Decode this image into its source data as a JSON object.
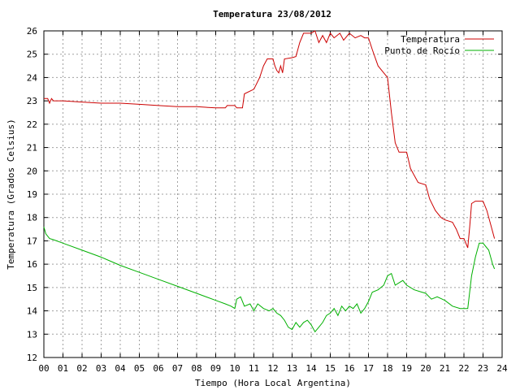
{
  "chart_data": {
    "type": "line",
    "title": "Temperatura 23/08/2012",
    "xlabel": "Tiempo (Hora Local Argentina)",
    "ylabel": "Temperatura (Grados Celsius)",
    "xlim": [
      0,
      24
    ],
    "ylim": [
      12,
      26
    ],
    "xticks": [
      "00",
      "01",
      "02",
      "03",
      "04",
      "05",
      "06",
      "07",
      "08",
      "09",
      "10",
      "11",
      "12",
      "13",
      "14",
      "15",
      "16",
      "17",
      "18",
      "19",
      "20",
      "21",
      "22",
      "23",
      "24"
    ],
    "yticks": [
      "12",
      "13",
      "14",
      "15",
      "16",
      "17",
      "18",
      "19",
      "20",
      "21",
      "22",
      "23",
      "24",
      "25",
      "26"
    ],
    "grid": true,
    "legend_position": "top-right",
    "series": [
      {
        "name": "Temperatura",
        "color": "#cc0000",
        "points": [
          [
            0.0,
            23.1
          ],
          [
            0.2,
            23.1
          ],
          [
            0.3,
            22.9
          ],
          [
            0.4,
            23.1
          ],
          [
            0.5,
            23.0
          ],
          [
            1.0,
            23.0
          ],
          [
            2.0,
            22.95
          ],
          [
            3.0,
            22.9
          ],
          [
            4.0,
            22.9
          ],
          [
            5.0,
            22.85
          ],
          [
            6.0,
            22.8
          ],
          [
            7.0,
            22.75
          ],
          [
            8.0,
            22.75
          ],
          [
            9.0,
            22.7
          ],
          [
            9.5,
            22.7
          ],
          [
            9.6,
            22.8
          ],
          [
            10.0,
            22.8
          ],
          [
            10.1,
            22.7
          ],
          [
            10.4,
            22.7
          ],
          [
            10.5,
            23.3
          ],
          [
            11.0,
            23.5
          ],
          [
            11.3,
            24.0
          ],
          [
            11.5,
            24.5
          ],
          [
            11.7,
            24.8
          ],
          [
            12.0,
            24.8
          ],
          [
            12.1,
            24.5
          ],
          [
            12.2,
            24.3
          ],
          [
            12.3,
            24.2
          ],
          [
            12.4,
            24.5
          ],
          [
            12.5,
            24.2
          ],
          [
            12.6,
            24.8
          ],
          [
            13.0,
            24.85
          ],
          [
            13.2,
            24.9
          ],
          [
            13.4,
            25.5
          ],
          [
            13.6,
            25.9
          ],
          [
            14.0,
            25.9
          ],
          [
            14.2,
            26.0
          ],
          [
            14.4,
            25.5
          ],
          [
            14.6,
            25.8
          ],
          [
            14.8,
            25.5
          ],
          [
            15.0,
            25.9
          ],
          [
            15.2,
            25.7
          ],
          [
            15.5,
            25.9
          ],
          [
            15.7,
            25.6
          ],
          [
            16.0,
            25.9
          ],
          [
            16.3,
            25.7
          ],
          [
            16.6,
            25.8
          ],
          [
            16.8,
            25.7
          ],
          [
            17.0,
            25.7
          ],
          [
            17.2,
            25.2
          ],
          [
            17.5,
            24.5
          ],
          [
            17.8,
            24.2
          ],
          [
            18.0,
            24.0
          ],
          [
            18.2,
            22.5
          ],
          [
            18.4,
            21.2
          ],
          [
            18.6,
            20.8
          ],
          [
            19.0,
            20.8
          ],
          [
            19.2,
            20.1
          ],
          [
            19.6,
            19.5
          ],
          [
            20.0,
            19.4
          ],
          [
            20.2,
            18.8
          ],
          [
            20.5,
            18.3
          ],
          [
            20.8,
            18.0
          ],
          [
            21.0,
            17.9
          ],
          [
            21.4,
            17.8
          ],
          [
            21.6,
            17.5
          ],
          [
            21.8,
            17.1
          ],
          [
            22.0,
            17.1
          ],
          [
            22.2,
            16.7
          ],
          [
            22.3,
            17.6
          ],
          [
            22.4,
            18.6
          ],
          [
            22.6,
            18.7
          ],
          [
            23.0,
            18.7
          ],
          [
            23.2,
            18.3
          ],
          [
            23.4,
            17.7
          ],
          [
            23.6,
            17.1
          ]
        ]
      },
      {
        "name": "Punto de Rocío",
        "color": "#00b000",
        "points": [
          [
            0.0,
            17.6
          ],
          [
            0.1,
            17.3
          ],
          [
            0.3,
            17.1
          ],
          [
            0.5,
            17.05
          ],
          [
            1.0,
            16.9
          ],
          [
            2.0,
            16.6
          ],
          [
            3.0,
            16.3
          ],
          [
            4.0,
            15.95
          ],
          [
            5.0,
            15.65
          ],
          [
            6.0,
            15.35
          ],
          [
            7.0,
            15.05
          ],
          [
            8.0,
            14.75
          ],
          [
            9.0,
            14.45
          ],
          [
            9.5,
            14.3
          ],
          [
            9.8,
            14.2
          ],
          [
            10.0,
            14.1
          ],
          [
            10.1,
            14.5
          ],
          [
            10.3,
            14.6
          ],
          [
            10.5,
            14.2
          ],
          [
            10.8,
            14.3
          ],
          [
            11.0,
            14.0
          ],
          [
            11.2,
            14.3
          ],
          [
            11.5,
            14.1
          ],
          [
            11.8,
            14.0
          ],
          [
            12.0,
            14.1
          ],
          [
            12.2,
            13.9
          ],
          [
            12.4,
            13.8
          ],
          [
            12.6,
            13.6
          ],
          [
            12.8,
            13.3
          ],
          [
            13.0,
            13.2
          ],
          [
            13.2,
            13.5
          ],
          [
            13.4,
            13.3
          ],
          [
            13.6,
            13.5
          ],
          [
            13.8,
            13.6
          ],
          [
            14.0,
            13.4
          ],
          [
            14.2,
            13.1
          ],
          [
            14.4,
            13.3
          ],
          [
            14.6,
            13.5
          ],
          [
            14.8,
            13.8
          ],
          [
            15.0,
            13.9
          ],
          [
            15.2,
            14.1
          ],
          [
            15.4,
            13.8
          ],
          [
            15.6,
            14.2
          ],
          [
            15.8,
            14.0
          ],
          [
            16.0,
            14.2
          ],
          [
            16.2,
            14.1
          ],
          [
            16.4,
            14.3
          ],
          [
            16.6,
            13.9
          ],
          [
            16.8,
            14.1
          ],
          [
            17.0,
            14.4
          ],
          [
            17.2,
            14.8
          ],
          [
            17.5,
            14.9
          ],
          [
            17.8,
            15.1
          ],
          [
            18.0,
            15.5
          ],
          [
            18.2,
            15.6
          ],
          [
            18.4,
            15.1
          ],
          [
            18.6,
            15.2
          ],
          [
            18.8,
            15.3
          ],
          [
            19.0,
            15.1
          ],
          [
            19.4,
            14.9
          ],
          [
            19.8,
            14.8
          ],
          [
            20.0,
            14.75
          ],
          [
            20.3,
            14.5
          ],
          [
            20.6,
            14.6
          ],
          [
            21.0,
            14.45
          ],
          [
            21.4,
            14.2
          ],
          [
            21.8,
            14.1
          ],
          [
            22.0,
            14.1
          ],
          [
            22.2,
            14.1
          ],
          [
            22.4,
            15.5
          ],
          [
            22.6,
            16.3
          ],
          [
            22.8,
            16.9
          ],
          [
            23.0,
            16.9
          ],
          [
            23.3,
            16.6
          ],
          [
            23.5,
            16.0
          ],
          [
            23.6,
            15.8
          ]
        ]
      }
    ]
  }
}
